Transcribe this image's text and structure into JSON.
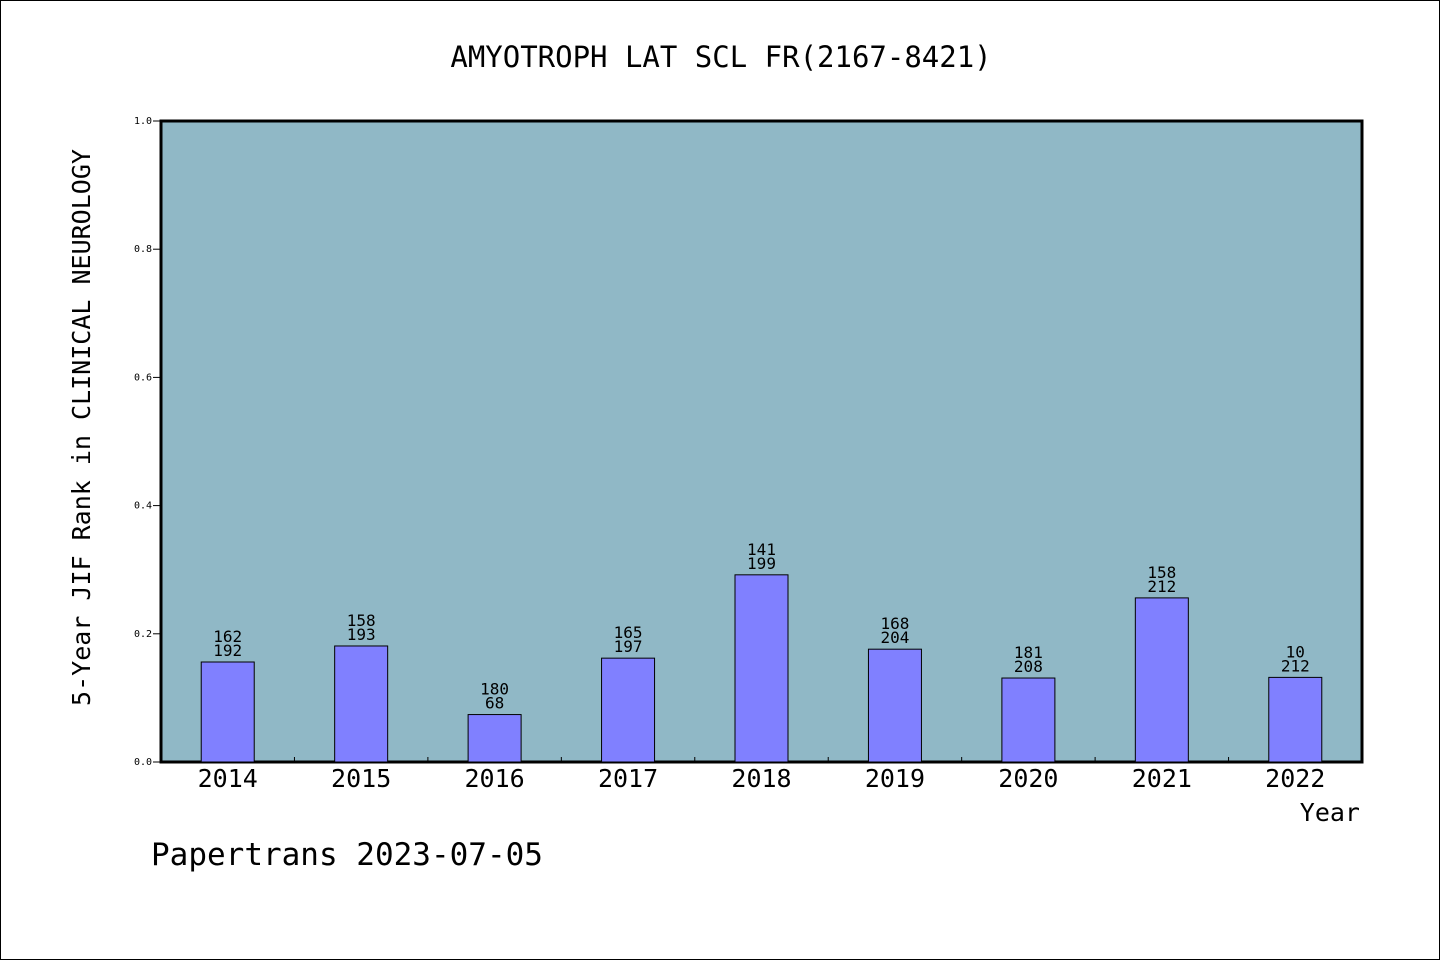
{
  "footer": {
    "watermark": "Papertrans 2023-07-05"
  },
  "colors": {
    "plot_bg": "#90b8c6",
    "bar_fill": "#8080ff",
    "bar_stroke": "#000000",
    "axis": "#000000",
    "text": "#000000"
  },
  "chart_data": {
    "type": "bar",
    "title": "AMYOTROPH LAT SCL FR(2167-8421)",
    "xlabel": "Year",
    "ylabel": "5-Year JIF Rank in CLINICAL NEUROLOGY",
    "ylim": [
      0,
      1.0
    ],
    "yticks": [
      "0.0",
      "0.2",
      "0.4",
      "0.6",
      "0.8",
      "1.0"
    ],
    "grid": false,
    "categories": [
      "2014",
      "2015",
      "2016",
      "2017",
      "2018",
      "2019",
      "2020",
      "2021",
      "2022"
    ],
    "values": [
      0.156,
      0.181,
      0.074,
      0.162,
      0.292,
      0.176,
      0.131,
      0.256,
      0.132
    ],
    "rank": [
      "162",
      "158",
      "180",
      "165",
      "141",
      "168",
      "181",
      "158",
      "10"
    ],
    "total": [
      "192",
      "193",
      "68",
      "197",
      "199",
      "204",
      "208",
      "212",
      "212"
    ]
  }
}
